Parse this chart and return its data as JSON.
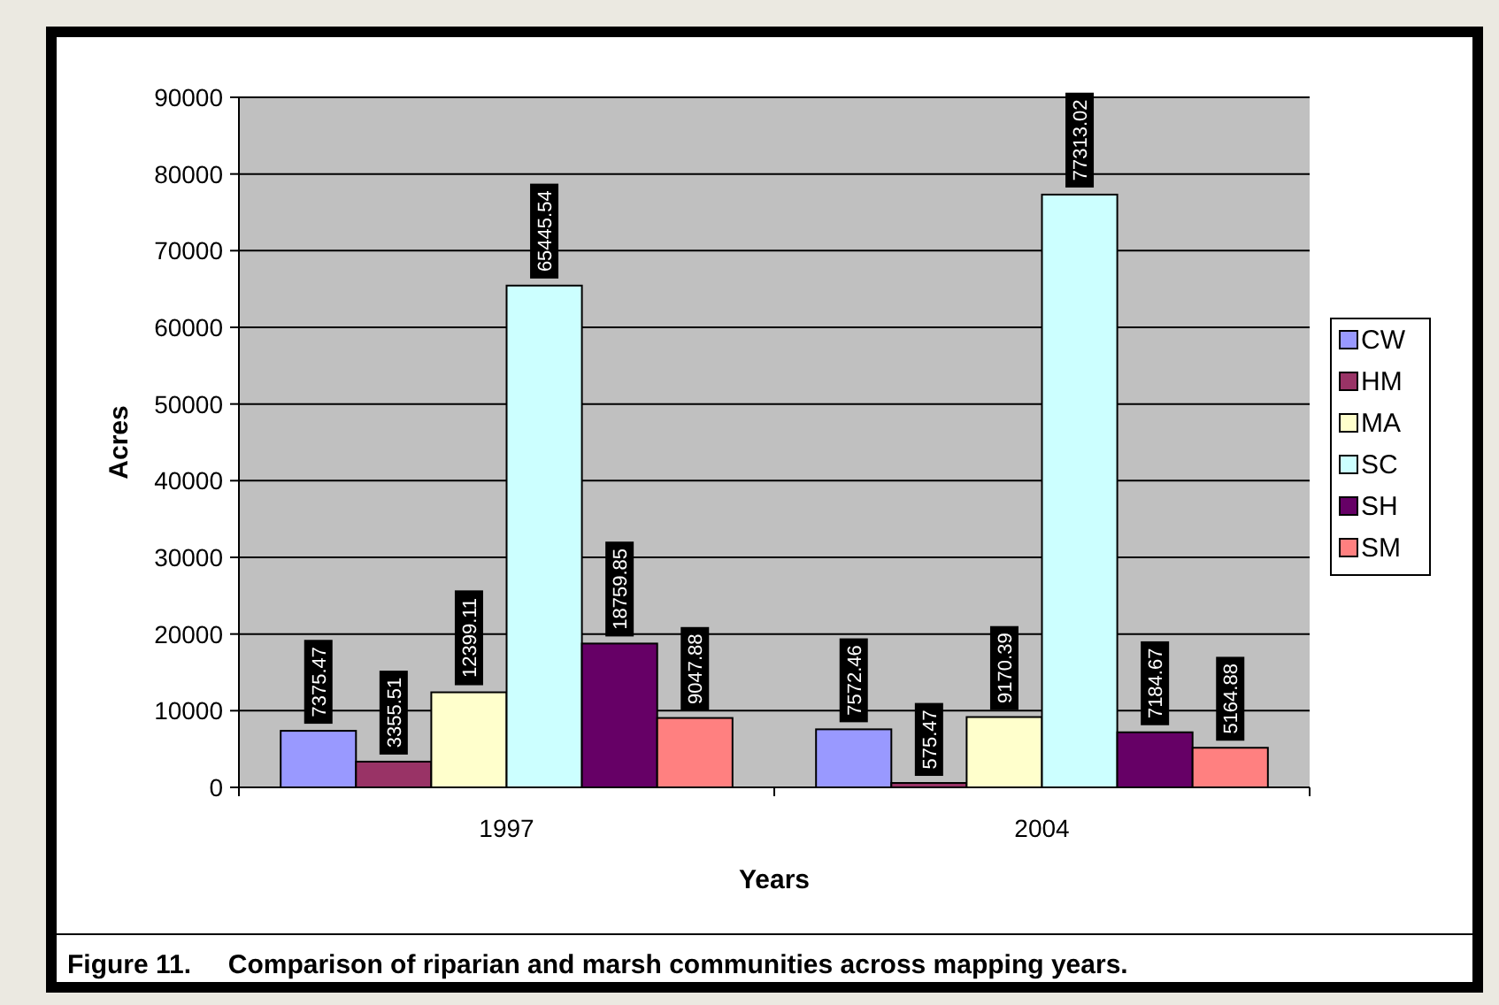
{
  "chart_data": {
    "type": "bar",
    "xlabel": "Years",
    "ylabel": "Acres",
    "categories": [
      "1997",
      "2004"
    ],
    "series": [
      {
        "name": "CW",
        "color": "#9999ff",
        "values": [
          7375.47,
          7572.46
        ]
      },
      {
        "name": "HM",
        "color": "#993366",
        "values": [
          3355.51,
          575.47
        ]
      },
      {
        "name": "MA",
        "color": "#ffffcc",
        "values": [
          12399.11,
          9170.39
        ]
      },
      {
        "name": "SC",
        "color": "#ccffff",
        "values": [
          65445.54,
          77313.02
        ]
      },
      {
        "name": "SH",
        "color": "#660066",
        "values": [
          18759.85,
          7184.67
        ]
      },
      {
        "name": "SM",
        "color": "#ff8080",
        "values": [
          9047.88,
          5164.88
        ]
      }
    ],
    "ylim": [
      0,
      90000
    ],
    "yticks": [
      0,
      10000,
      20000,
      30000,
      40000,
      50000,
      60000,
      70000,
      80000,
      90000
    ],
    "grid": "y",
    "legend": "right",
    "data_labels": true,
    "annotations": [
      "Figure 11.     Comparison of riparian and marsh communities across mapping years."
    ]
  }
}
